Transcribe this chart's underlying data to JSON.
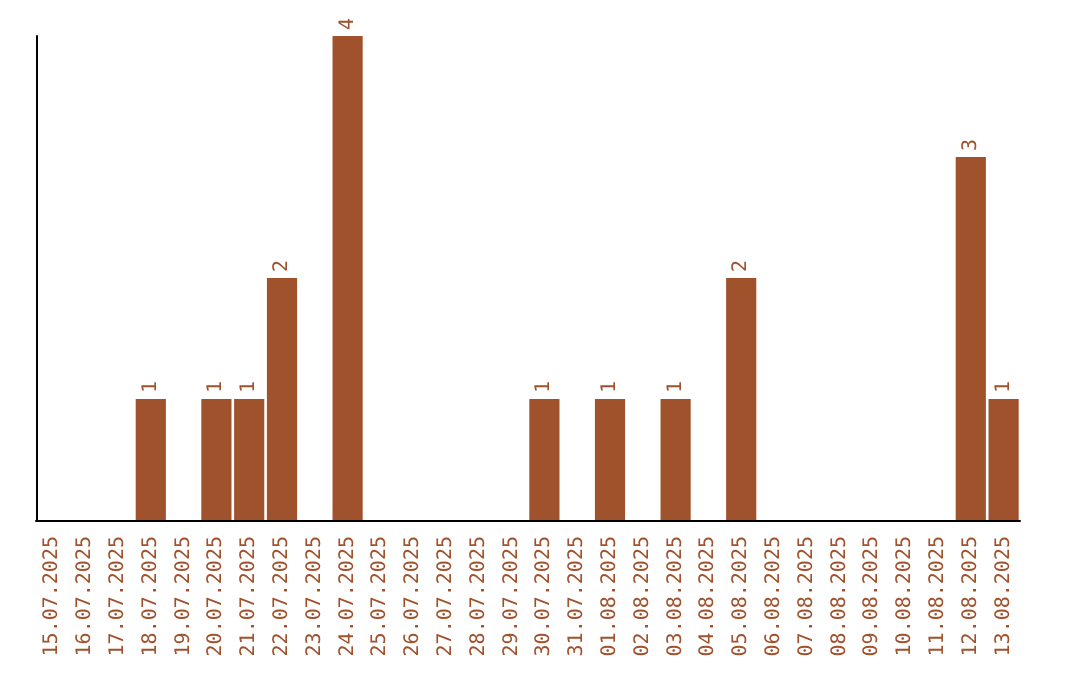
{
  "chart_data": {
    "type": "bar",
    "categories": [
      "15.07.2025",
      "16.07.2025",
      "17.07.2025",
      "18.07.2025",
      "19.07.2025",
      "20.07.2025",
      "21.07.2025",
      "22.07.2025",
      "23.07.2025",
      "24.07.2025",
      "25.07.2025",
      "26.07.2025",
      "27.07.2025",
      "28.07.2025",
      "29.07.2025",
      "30.07.2025",
      "31.07.2025",
      "01.08.2025",
      "02.08.2025",
      "03.08.2025",
      "04.08.2025",
      "05.08.2025",
      "06.08.2025",
      "07.08.2025",
      "08.08.2025",
      "09.08.2025",
      "10.08.2025",
      "11.08.2025",
      "12.08.2025",
      "13.08.2025"
    ],
    "values": [
      0,
      0,
      0,
      1,
      0,
      1,
      1,
      2,
      0,
      4,
      0,
      0,
      0,
      0,
      0,
      1,
      0,
      1,
      0,
      1,
      0,
      2,
      0,
      0,
      0,
      0,
      0,
      0,
      3,
      1
    ],
    "value_labels": [
      null,
      null,
      null,
      "1",
      null,
      "1",
      "1",
      "2",
      null,
      "4",
      null,
      null,
      null,
      null,
      null,
      "1",
      null,
      "1",
      null,
      "1",
      null,
      "2",
      null,
      null,
      null,
      null,
      null,
      null,
      "3",
      "1"
    ],
    "color": "#a0522d",
    "tick_labels": "x"
  }
}
